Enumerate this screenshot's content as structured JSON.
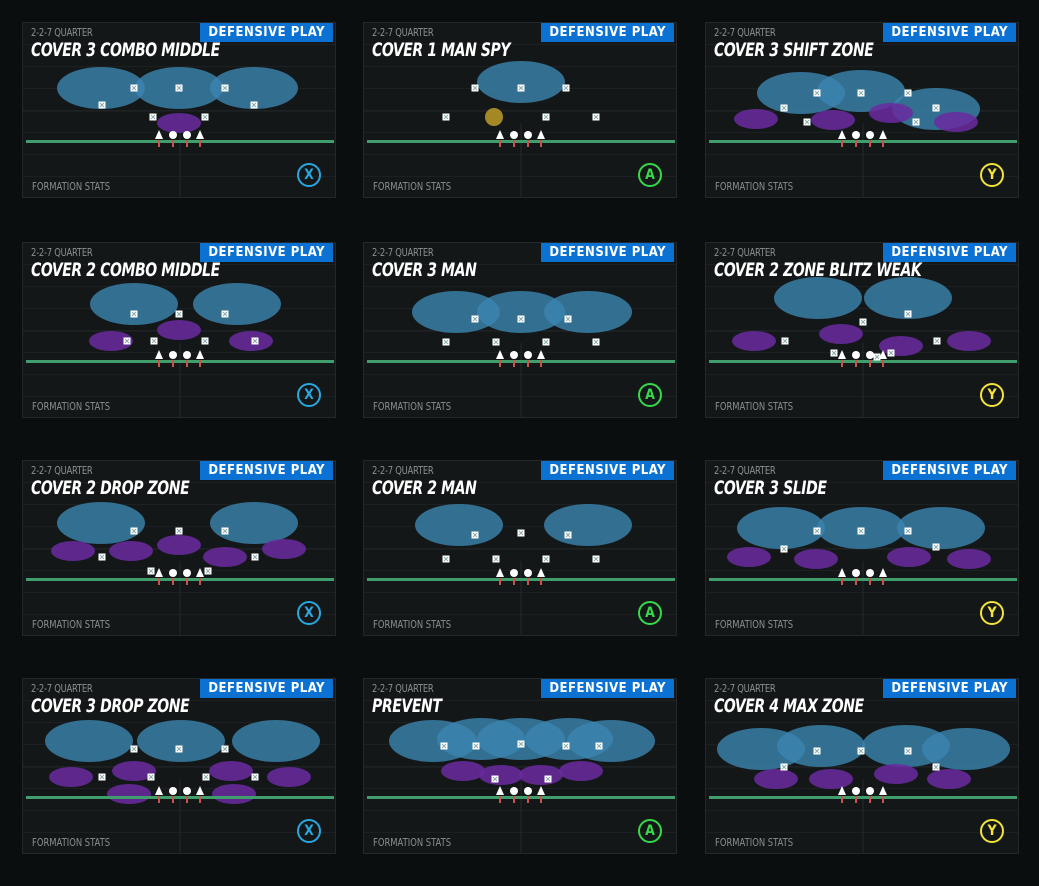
{
  "cards": [
    {
      "formation": "2-2-7 QUARTER",
      "title": "COVER 3 COMBO MIDDLE",
      "badge": "DEFENSIVE PLAY",
      "stats": "FORMATION STATS",
      "button": "X",
      "button_color": "#2aa7e0"
    },
    {
      "formation": "2-2-7 QUARTER",
      "title": "COVER 1 MAN SPY",
      "badge": "DEFENSIVE PLAY",
      "stats": "FORMATION STATS",
      "button": "A",
      "button_color": "#35d94a"
    },
    {
      "formation": "2-2-7 QUARTER",
      "title": "COVER 3 SHIFT ZONE",
      "badge": "DEFENSIVE PLAY",
      "stats": "FORMATION STATS",
      "button": "Y",
      "button_color": "#f2e43a"
    },
    {
      "formation": "2-2-7 QUARTER",
      "title": "COVER 2 COMBO MIDDLE",
      "badge": "DEFENSIVE PLAY",
      "stats": "FORMATION STATS",
      "button": "X",
      "button_color": "#2aa7e0"
    },
    {
      "formation": "2-2-7 QUARTER",
      "title": "COVER 3 MAN",
      "badge": "DEFENSIVE PLAY",
      "stats": "FORMATION STATS",
      "button": "A",
      "button_color": "#35d94a"
    },
    {
      "formation": "2-2-7 QUARTER",
      "title": "COVER 2 ZONE BLITZ WEAK",
      "badge": "DEFENSIVE PLAY",
      "stats": "FORMATION STATS",
      "button": "Y",
      "button_color": "#f2e43a"
    },
    {
      "formation": "2-2-7 QUARTER",
      "title": "COVER 2 DROP ZONE",
      "badge": "DEFENSIVE PLAY",
      "stats": "FORMATION STATS",
      "button": "X",
      "button_color": "#2aa7e0"
    },
    {
      "formation": "2-2-7 QUARTER",
      "title": "COVER 2 MAN",
      "badge": "DEFENSIVE PLAY",
      "stats": "FORMATION STATS",
      "button": "A",
      "button_color": "#35d94a"
    },
    {
      "formation": "2-2-7 QUARTER",
      "title": "COVER 3 SLIDE",
      "badge": "DEFENSIVE PLAY",
      "stats": "FORMATION STATS",
      "button": "Y",
      "button_color": "#f2e43a"
    },
    {
      "formation": "2-2-7 QUARTER",
      "title": "COVER 3 DROP ZONE",
      "badge": "DEFENSIVE PLAY",
      "stats": "FORMATION STATS",
      "button": "X",
      "button_color": "#2aa7e0"
    },
    {
      "formation": "2-2-7 QUARTER",
      "title": "PREVENT",
      "badge": "DEFENSIVE PLAY",
      "stats": "FORMATION STATS",
      "button": "A",
      "button_color": "#35d94a"
    },
    {
      "formation": "2-2-7 QUARTER",
      "title": "COVER 4 MAX ZONE",
      "badge": "DEFENSIVE PLAY",
      "stats": "FORMATION STATS",
      "button": "Y",
      "button_color": "#f2e43a"
    }
  ],
  "colors": {
    "deep_zone": "#3b86b0",
    "hook_zone": "#6a2aa0",
    "line_of_scrimmage": "#3f9e6c",
    "badge": "#0b72d3",
    "spy": "#c9a52a"
  }
}
